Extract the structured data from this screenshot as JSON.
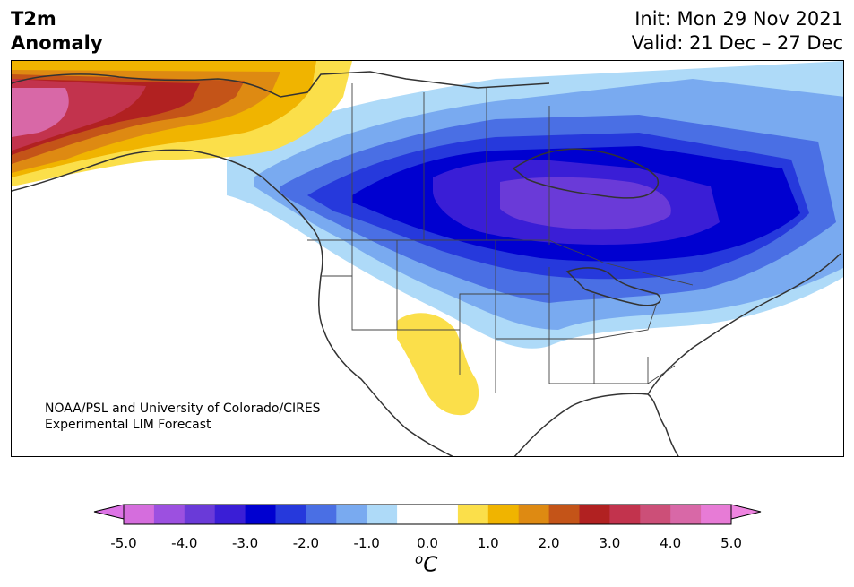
{
  "title": {
    "left_line1": "T2m",
    "left_line2": "Anomaly",
    "init": "Init: Mon 29 Nov 2021",
    "valid": "Valid: 21 Dec – 27 Dec"
  },
  "credit": {
    "line1": "NOAA/PSL and University of Colorado/CIRES",
    "line2": "Experimental LIM Forecast"
  },
  "colorbar": {
    "unit_base": "C",
    "unit_sup": "o",
    "ticks": [
      "-5.0",
      "-4.0",
      "-3.0",
      "-2.0",
      "-1.0",
      "0.0",
      "1.0",
      "2.0",
      "3.0",
      "4.0",
      "5.0"
    ],
    "colors": [
      "#d56ddd",
      "#9c50e0",
      "#6a3ad8",
      "#3a1ed6",
      "#0000d0",
      "#2639dc",
      "#4a6fe4",
      "#79aaf0",
      "#aedaf8",
      "#ffffff",
      "#ffffff",
      "#fbdf4a",
      "#f0b400",
      "#de8a12",
      "#c45418",
      "#b12121",
      "#c2334d",
      "#cc4f78",
      "#d868a7",
      "#e77bd6"
    ],
    "min_extension_color": "#dd73e6",
    "max_extension_color": "#ee84e0"
  },
  "map_colors": {
    "land": "#fffdf8",
    "coast": "#333333",
    "border": "#444444"
  }
}
